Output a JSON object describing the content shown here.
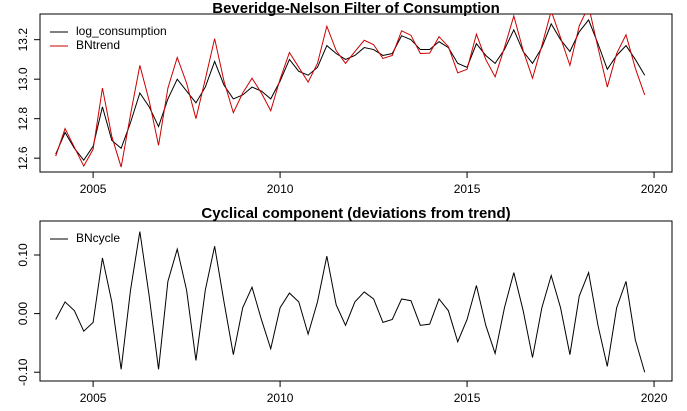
{
  "chart_data": [
    {
      "type": "line",
      "title": "Beveridge-Nelson Filter of Consumption",
      "x": [
        2004,
        2004.25,
        2004.5,
        2004.75,
        2005,
        2005.25,
        2005.5,
        2005.75,
        2006,
        2006.25,
        2006.5,
        2006.75,
        2007,
        2007.25,
        2007.5,
        2007.75,
        2008,
        2008.25,
        2008.5,
        2008.75,
        2009,
        2009.25,
        2009.5,
        2009.75,
        2010,
        2010.25,
        2010.5,
        2010.75,
        2011,
        2011.25,
        2011.5,
        2011.75,
        2012,
        2012.25,
        2012.5,
        2012.75,
        2013,
        2013.25,
        2013.5,
        2013.75,
        2014,
        2014.25,
        2014.5,
        2014.75,
        2015,
        2015.25,
        2015.5,
        2015.75,
        2016,
        2016.25,
        2016.5,
        2016.75,
        2017,
        2017.25,
        2017.5,
        2017.75,
        2018,
        2018.25,
        2018.5,
        2018.75,
        2019,
        2019.25,
        2019.5,
        2019.75
      ],
      "series": [
        {
          "name": "log_consumption",
          "color": "#000000",
          "values": [
            12.62,
            12.73,
            12.65,
            12.59,
            12.66,
            12.86,
            12.69,
            12.65,
            12.78,
            12.93,
            12.86,
            12.76,
            12.9,
            13.0,
            12.94,
            12.88,
            12.96,
            13.09,
            12.97,
            12.9,
            12.92,
            12.96,
            12.94,
            12.9,
            12.99,
            13.1,
            13.04,
            13.02,
            13.06,
            13.17,
            13.13,
            13.1,
            13.12,
            13.16,
            13.15,
            13.12,
            13.13,
            13.22,
            13.2,
            13.15,
            13.15,
            13.19,
            13.16,
            13.08,
            13.06,
            13.18,
            13.12,
            13.08,
            13.15,
            13.25,
            13.14,
            13.08,
            13.16,
            13.28,
            13.2,
            13.14,
            13.24,
            13.3,
            13.18,
            13.05,
            13.12,
            13.17,
            13.1,
            13.02
          ]
        },
        {
          "name": "BNtrend",
          "color": "#cc0000",
          "values": [
            12.61,
            12.75,
            12.655,
            12.56,
            12.645,
            12.955,
            12.71,
            12.555,
            12.82,
            13.07,
            12.89,
            12.665,
            12.955,
            13.11,
            12.98,
            12.8,
            13.0,
            13.205,
            12.99,
            12.83,
            12.93,
            13.005,
            12.93,
            12.84,
            13.0,
            13.135,
            13.06,
            12.985,
            13.08,
            13.268,
            13.145,
            13.08,
            13.14,
            13.197,
            13.175,
            13.105,
            13.12,
            13.245,
            13.222,
            13.13,
            13.132,
            13.215,
            13.165,
            13.032,
            13.05,
            13.228,
            13.1,
            13.012,
            13.16,
            13.32,
            13.145,
            13.005,
            13.17,
            13.345,
            13.21,
            13.07,
            13.27,
            13.37,
            13.16,
            12.96,
            13.13,
            13.225,
            13.055,
            12.92
          ]
        }
      ],
      "xlim": [
        2003.58,
        2020.48
      ],
      "xticks": [
        2005,
        2010,
        2015,
        2020
      ],
      "ylim": [
        12.53,
        13.33
      ],
      "yticks": [
        12.6,
        12.8,
        {
          "value": 13.0,
          "label": "13.0"
        },
        13.2
      ],
      "legend": "top-left"
    },
    {
      "type": "line",
      "title": "Cyclical component (deviations from trend)",
      "x": [
        2004,
        2004.25,
        2004.5,
        2004.75,
        2005,
        2005.25,
        2005.5,
        2005.75,
        2006,
        2006.25,
        2006.5,
        2006.75,
        2007,
        2007.25,
        2007.5,
        2007.75,
        2008,
        2008.25,
        2008.5,
        2008.75,
        2009,
        2009.25,
        2009.5,
        2009.75,
        2010,
        2010.25,
        2010.5,
        2010.75,
        2011,
        2011.25,
        2011.5,
        2011.75,
        2012,
        2012.25,
        2012.5,
        2012.75,
        2013,
        2013.25,
        2013.5,
        2013.75,
        2014,
        2014.25,
        2014.5,
        2014.75,
        2015,
        2015.25,
        2015.5,
        2015.75,
        2016,
        2016.25,
        2016.5,
        2016.75,
        2017,
        2017.25,
        2017.5,
        2017.75,
        2018,
        2018.25,
        2018.5,
        2018.75,
        2019,
        2019.25,
        2019.5,
        2019.75
      ],
      "series": [
        {
          "name": "BNcycle",
          "color": "#000000",
          "values": [
            -0.01,
            0.02,
            0.005,
            -0.03,
            -0.015,
            0.095,
            0.02,
            -0.095,
            0.04,
            0.14,
            0.03,
            -0.095,
            0.055,
            0.11,
            0.04,
            -0.08,
            0.04,
            0.115,
            0.02,
            -0.07,
            0.01,
            0.045,
            -0.01,
            -0.06,
            0.01,
            0.035,
            0.02,
            -0.035,
            0.02,
            0.098,
            0.015,
            -0.02,
            0.02,
            0.037,
            0.025,
            -0.015,
            -0.01,
            0.025,
            0.022,
            -0.02,
            -0.018,
            0.025,
            0.005,
            -0.048,
            -0.01,
            0.048,
            -0.02,
            -0.068,
            0.01,
            0.07,
            0.005,
            -0.075,
            0.01,
            0.065,
            0.01,
            -0.07,
            0.03,
            0.07,
            -0.02,
            -0.09,
            0.01,
            0.055,
            -0.045,
            -0.1
          ]
        }
      ],
      "xlim": [
        2003.58,
        2020.48
      ],
      "xticks": [
        2005,
        2010,
        2015,
        2020
      ],
      "ylim": [
        -0.115,
        0.158
      ],
      "yticks": [
        {
          "value": -0.1,
          "label": "-0.10"
        },
        {
          "value": 0,
          "label": "0.00"
        },
        {
          "value": 0.1,
          "label": "0.10"
        }
      ],
      "legend": "top-left"
    }
  ]
}
